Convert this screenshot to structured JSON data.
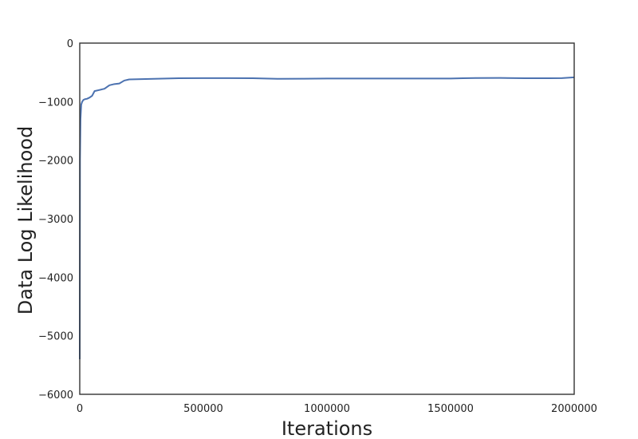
{
  "chart_data": {
    "type": "line",
    "title": "",
    "xlabel": "Iterations",
    "ylabel": "Data Log Likelihood",
    "xlim": [
      0,
      2000000
    ],
    "ylim": [
      -6000,
      0
    ],
    "xticks": [
      0,
      500000,
      1000000,
      1500000,
      2000000
    ],
    "yticks": [
      0,
      -1000,
      -2000,
      -3000,
      -4000,
      -5000,
      -6000
    ],
    "xtick_labels": [
      "0",
      "500000",
      "1000000",
      "1500000",
      "2000000"
    ],
    "ytick_labels": [
      "0",
      "−1000",
      "−2000",
      "−3000",
      "−4000",
      "−5000",
      "−6000"
    ],
    "grid": false,
    "line_color": "#4c72b0",
    "series": [
      {
        "x": [
          0,
          1000,
          3000,
          6000,
          10000,
          15000,
          20000,
          30000,
          40000,
          50000,
          60000,
          80000,
          100000,
          120000,
          140000,
          160000,
          180000,
          200000,
          250000,
          300000,
          350000,
          400000,
          500000,
          600000,
          700000,
          800000,
          900000,
          1000000,
          1100000,
          1200000,
          1300000,
          1400000,
          1500000,
          1550000,
          1600000,
          1700000,
          1800000,
          1900000,
          1950000,
          2000000
        ],
        "y": [
          -5400,
          -2000,
          -1300,
          -1050,
          -1000,
          -970,
          -960,
          -950,
          -930,
          -900,
          -820,
          -800,
          -780,
          -720,
          -700,
          -690,
          -640,
          -620,
          -615,
          -610,
          -605,
          -600,
          -598,
          -598,
          -600,
          -610,
          -608,
          -605,
          -605,
          -605,
          -605,
          -605,
          -605,
          -600,
          -597,
          -595,
          -600,
          -600,
          -598,
          -585
        ]
      }
    ]
  }
}
